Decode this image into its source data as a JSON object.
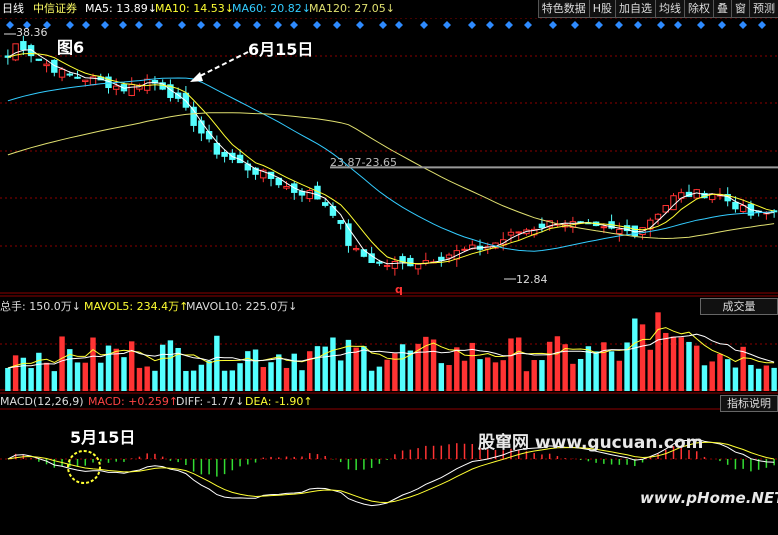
{
  "header": {
    "period": "日线",
    "stock": "中信证券",
    "ma5": "MA5: 13.89↓",
    "ma10": "MA10: 14.53↓",
    "ma60": "MA60: 20.82↓",
    "ma120": "MA120: 27.05↓",
    "buttons": [
      "特色数据",
      "H股",
      "加自选",
      "均线",
      "除权",
      "叠",
      "窗",
      "预测"
    ]
  },
  "annotations": {
    "fig": "图6",
    "june15": "6月15日",
    "may15": "5月15日",
    "high_label": "38.36",
    "low_label": "12.84",
    "level_label": "23.87-23.65",
    "marker_q": "q"
  },
  "volume_panel": {
    "total": "总手: 150.0万↓",
    "mavol5": "MAVOL5: 234.4万↑",
    "mavol10": "MAVOL10: 225.0万↓",
    "button": "成交量"
  },
  "macd_panel": {
    "name": "MACD(12,26,9)",
    "macd": "MACD: +0.259↑",
    "diff": "DIFF: -1.77↓",
    "dea": "DEA: -1.90↑",
    "button": "指标说明"
  },
  "watermarks": {
    "site1": "股窜网 www.gucuan.com",
    "site2": "www.pHome.NET"
  },
  "colors": {
    "up": "#ff3333",
    "down": "#54ffff",
    "ma5": "#ffffff",
    "ma10": "#ffff33",
    "ma60": "#33ccff",
    "ma120": "#e0e070",
    "grid": "#8b0000",
    "diamond": "#2e8bff"
  },
  "chart_data": {
    "type": "candlestick",
    "count": 100,
    "price_high": 38.36,
    "price_low": 12.84,
    "level_line": 23.87,
    "keypoints": [
      [
        0,
        36.0
      ],
      [
        2,
        37.8
      ],
      [
        6,
        35.8
      ],
      [
        12,
        34.0
      ],
      [
        18,
        33.5
      ],
      [
        24,
        32.5
      ],
      [
        28,
        33.6
      ],
      [
        32,
        32.7
      ],
      [
        36,
        30.2
      ],
      [
        42,
        25.8
      ],
      [
        48,
        24.0
      ],
      [
        54,
        22.6
      ],
      [
        58,
        21.3
      ],
      [
        62,
        21.0
      ],
      [
        66,
        19.2
      ],
      [
        70,
        14.8
      ],
      [
        76,
        13.1
      ],
      [
        84,
        13.5
      ],
      [
        92,
        14.6
      ],
      [
        98,
        15.2
      ],
      [
        104,
        16.8
      ],
      [
        112,
        18.0
      ],
      [
        120,
        17.0
      ],
      [
        128,
        16.8
      ],
      [
        136,
        20.8
      ],
      [
        144,
        21.1
      ],
      [
        152,
        18.4
      ],
      [
        156,
        19.0
      ]
    ]
  }
}
